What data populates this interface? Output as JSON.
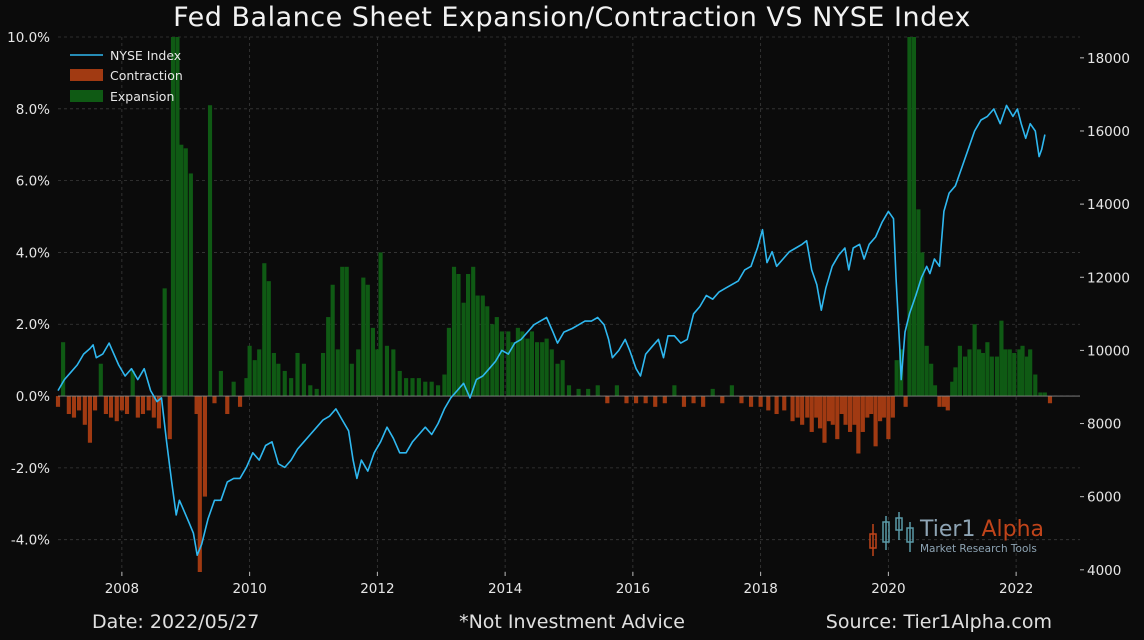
{
  "title": "Fed Balance Sheet Expansion/Contraction VS NYSE Index",
  "footer": {
    "date": "Date: 2022/05/27",
    "note": "*Not Investment Advice",
    "source": "Source: Tier1Alpha.com"
  },
  "watermark": {
    "brand_main": "Tier1",
    "brand_accent": "Alpha",
    "tagline": "Market Research Tools"
  },
  "colors": {
    "background": "#0b0b0b",
    "line": "#2fb8f0",
    "expansion": "#0f5a14",
    "contraction": "#a13a12",
    "grid": "#3a3a3a",
    "accent": "#c0441a"
  },
  "chart_data": {
    "type": "bar+line",
    "title": "Fed Balance Sheet Expansion/Contraction VS NYSE Index",
    "xlim": [
      2007.0,
      2023.0
    ],
    "x_ticks": [
      2008,
      2010,
      2012,
      2014,
      2016,
      2018,
      2020,
      2022
    ],
    "y_left": {
      "lim": [
        -4.9,
        10.0
      ],
      "ticks": [
        -4.0,
        -2.0,
        0.0,
        2.0,
        4.0,
        6.0,
        8.0,
        10.0
      ],
      "tick_labels": [
        "-4.0%",
        "-2.0%",
        "0.0%",
        "2.0%",
        "4.0%",
        "6.0%",
        "8.0%",
        "10.0%"
      ]
    },
    "y_right": {
      "lim": [
        3940,
        18570
      ],
      "ticks": [
        4000,
        6000,
        8000,
        10000,
        12000,
        14000,
        16000,
        18000
      ],
      "tick_labels": [
        "4000",
        "6000",
        "8000",
        "10000",
        "12000",
        "14000",
        "16000",
        "18000"
      ]
    },
    "legend": [
      "NYSE Index",
      "Contraction",
      "Expansion"
    ],
    "legend_position": "top-left",
    "grid": true,
    "bar_width_years": 0.065,
    "bars": [
      [
        2007.0,
        -0.3
      ],
      [
        2007.08,
        1.5
      ],
      [
        2007.17,
        -0.5
      ],
      [
        2007.25,
        -0.6
      ],
      [
        2007.33,
        -0.4
      ],
      [
        2007.42,
        -0.8
      ],
      [
        2007.5,
        -1.3
      ],
      [
        2007.58,
        -0.4
      ],
      [
        2007.67,
        0.9
      ],
      [
        2007.75,
        -0.5
      ],
      [
        2007.83,
        -0.6
      ],
      [
        2007.92,
        -0.7
      ],
      [
        2008.0,
        -0.4
      ],
      [
        2008.08,
        -0.5
      ],
      [
        2008.17,
        0.7
      ],
      [
        2008.25,
        -0.6
      ],
      [
        2008.33,
        -0.5
      ],
      [
        2008.42,
        -0.4
      ],
      [
        2008.5,
        -0.6
      ],
      [
        2008.58,
        -0.9
      ],
      [
        2008.67,
        3.0
      ],
      [
        2008.75,
        -1.2
      ],
      [
        2008.8,
        10.0
      ],
      [
        2008.87,
        10.0
      ],
      [
        2008.93,
        7.0
      ],
      [
        2009.0,
        6.9
      ],
      [
        2009.08,
        6.2
      ],
      [
        2009.17,
        -0.5
      ],
      [
        2009.22,
        -4.9
      ],
      [
        2009.3,
        -2.8
      ],
      [
        2009.38,
        8.1
      ],
      [
        2009.45,
        -0.2
      ],
      [
        2009.55,
        0.7
      ],
      [
        2009.65,
        -0.5
      ],
      [
        2009.75,
        0.4
      ],
      [
        2009.85,
        -0.3
      ],
      [
        2009.95,
        0.5
      ],
      [
        2010.0,
        1.4
      ],
      [
        2010.08,
        1.0
      ],
      [
        2010.15,
        1.3
      ],
      [
        2010.23,
        3.7
      ],
      [
        2010.3,
        3.2
      ],
      [
        2010.38,
        1.2
      ],
      [
        2010.45,
        0.9
      ],
      [
        2010.55,
        0.7
      ],
      [
        2010.65,
        0.5
      ],
      [
        2010.75,
        1.2
      ],
      [
        2010.85,
        0.9
      ],
      [
        2010.95,
        0.3
      ],
      [
        2011.05,
        0.2
      ],
      [
        2011.15,
        1.2
      ],
      [
        2011.23,
        2.2
      ],
      [
        2011.3,
        3.1
      ],
      [
        2011.38,
        1.3
      ],
      [
        2011.45,
        3.6
      ],
      [
        2011.52,
        3.6
      ],
      [
        2011.6,
        0.9
      ],
      [
        2011.7,
        1.3
      ],
      [
        2011.78,
        3.3
      ],
      [
        2011.85,
        3.1
      ],
      [
        2011.93,
        1.9
      ],
      [
        2012.0,
        1.3
      ],
      [
        2012.05,
        4.0
      ],
      [
        2012.15,
        1.4
      ],
      [
        2012.25,
        1.3
      ],
      [
        2012.35,
        0.7
      ],
      [
        2012.45,
        0.5
      ],
      [
        2012.55,
        0.5
      ],
      [
        2012.65,
        0.5
      ],
      [
        2012.75,
        0.4
      ],
      [
        2012.85,
        0.4
      ],
      [
        2012.95,
        0.3
      ],
      [
        2013.05,
        0.6
      ],
      [
        2013.12,
        1.9
      ],
      [
        2013.2,
        3.6
      ],
      [
        2013.27,
        3.4
      ],
      [
        2013.35,
        2.6
      ],
      [
        2013.42,
        3.4
      ],
      [
        2013.5,
        3.6
      ],
      [
        2013.57,
        2.8
      ],
      [
        2013.65,
        2.8
      ],
      [
        2013.72,
        2.5
      ],
      [
        2013.8,
        2.0
      ],
      [
        2013.87,
        2.2
      ],
      [
        2013.95,
        1.8
      ],
      [
        2014.05,
        1.8
      ],
      [
        2014.12,
        1.5
      ],
      [
        2014.2,
        1.9
      ],
      [
        2014.27,
        1.8
      ],
      [
        2014.35,
        1.6
      ],
      [
        2014.42,
        1.8
      ],
      [
        2014.5,
        1.5
      ],
      [
        2014.58,
        1.5
      ],
      [
        2014.65,
        1.6
      ],
      [
        2014.73,
        1.3
      ],
      [
        2014.82,
        0.9
      ],
      [
        2014.9,
        1.0
      ],
      [
        2015.0,
        0.3
      ],
      [
        2015.15,
        0.2
      ],
      [
        2015.3,
        0.2
      ],
      [
        2015.45,
        0.3
      ],
      [
        2015.6,
        -0.2
      ],
      [
        2015.75,
        0.3
      ],
      [
        2015.9,
        -0.2
      ],
      [
        2016.05,
        -0.2
      ],
      [
        2016.2,
        -0.2
      ],
      [
        2016.35,
        -0.3
      ],
      [
        2016.5,
        -0.2
      ],
      [
        2016.65,
        0.3
      ],
      [
        2016.8,
        -0.3
      ],
      [
        2016.95,
        -0.2
      ],
      [
        2017.1,
        -0.3
      ],
      [
        2017.25,
        0.2
      ],
      [
        2017.4,
        -0.2
      ],
      [
        2017.55,
        0.3
      ],
      [
        2017.7,
        -0.2
      ],
      [
        2017.85,
        -0.3
      ],
      [
        2018.0,
        -0.3
      ],
      [
        2018.12,
        -0.4
      ],
      [
        2018.25,
        -0.5
      ],
      [
        2018.37,
        -0.4
      ],
      [
        2018.5,
        -0.7
      ],
      [
        2018.58,
        -0.6
      ],
      [
        2018.65,
        -0.8
      ],
      [
        2018.73,
        -0.6
      ],
      [
        2018.8,
        -1.0
      ],
      [
        2018.87,
        -0.6
      ],
      [
        2018.93,
        -0.9
      ],
      [
        2019.0,
        -1.3
      ],
      [
        2019.07,
        -0.7
      ],
      [
        2019.13,
        -0.8
      ],
      [
        2019.2,
        -1.2
      ],
      [
        2019.27,
        -0.5
      ],
      [
        2019.33,
        -0.8
      ],
      [
        2019.4,
        -1.0
      ],
      [
        2019.47,
        -0.8
      ],
      [
        2019.53,
        -1.6
      ],
      [
        2019.6,
        -1.0
      ],
      [
        2019.67,
        -0.6
      ],
      [
        2019.73,
        -0.5
      ],
      [
        2019.8,
        -1.4
      ],
      [
        2019.87,
        -0.7
      ],
      [
        2019.93,
        -0.6
      ],
      [
        2020.0,
        -1.2
      ],
      [
        2020.07,
        -0.6
      ],
      [
        2020.13,
        1.0
      ],
      [
        2020.2,
        1.3
      ],
      [
        2020.27,
        -0.3
      ],
      [
        2020.33,
        10.0
      ],
      [
        2020.4,
        10.0
      ],
      [
        2020.47,
        5.2
      ],
      [
        2020.53,
        4.0
      ],
      [
        2020.6,
        1.4
      ],
      [
        2020.67,
        0.9
      ],
      [
        2020.73,
        0.3
      ],
      [
        2020.8,
        -0.3
      ],
      [
        2020.87,
        -0.3
      ],
      [
        2020.93,
        -0.4
      ],
      [
        2021.0,
        0.4
      ],
      [
        2021.05,
        0.8
      ],
      [
        2021.12,
        1.4
      ],
      [
        2021.2,
        1.1
      ],
      [
        2021.27,
        1.3
      ],
      [
        2021.35,
        2.0
      ],
      [
        2021.42,
        1.3
      ],
      [
        2021.48,
        1.2
      ],
      [
        2021.55,
        1.5
      ],
      [
        2021.62,
        1.1
      ],
      [
        2021.7,
        1.1
      ],
      [
        2021.77,
        2.1
      ],
      [
        2021.83,
        1.3
      ],
      [
        2021.9,
        1.3
      ],
      [
        2021.97,
        1.2
      ],
      [
        2022.05,
        1.3
      ],
      [
        2022.1,
        1.4
      ],
      [
        2022.17,
        1.1
      ],
      [
        2022.22,
        1.3
      ],
      [
        2022.3,
        0.6
      ],
      [
        2022.38,
        0.1
      ],
      [
        2022.45,
        0.1
      ],
      [
        2022.53,
        -0.2
      ]
    ],
    "nyse": [
      [
        2007.0,
        8900
      ],
      [
        2007.1,
        9200
      ],
      [
        2007.2,
        9400
      ],
      [
        2007.3,
        9600
      ],
      [
        2007.4,
        9900
      ],
      [
        2007.5,
        10050
      ],
      [
        2007.55,
        10150
      ],
      [
        2007.6,
        9800
      ],
      [
        2007.7,
        9900
      ],
      [
        2007.8,
        10200
      ],
      [
        2007.85,
        10000
      ],
      [
        2007.95,
        9600
      ],
      [
        2008.05,
        9300
      ],
      [
        2008.15,
        9500
      ],
      [
        2008.25,
        9200
      ],
      [
        2008.35,
        9500
      ],
      [
        2008.45,
        8900
      ],
      [
        2008.55,
        8600
      ],
      [
        2008.62,
        8700
      ],
      [
        2008.7,
        7500
      ],
      [
        2008.78,
        6400
      ],
      [
        2008.85,
        5500
      ],
      [
        2008.9,
        5900
      ],
      [
        2008.95,
        5700
      ],
      [
        2009.05,
        5300
      ],
      [
        2009.12,
        5000
      ],
      [
        2009.18,
        4400
      ],
      [
        2009.25,
        4700
      ],
      [
        2009.35,
        5400
      ],
      [
        2009.45,
        5900
      ],
      [
        2009.55,
        5900
      ],
      [
        2009.65,
        6400
      ],
      [
        2009.75,
        6500
      ],
      [
        2009.85,
        6500
      ],
      [
        2009.95,
        6800
      ],
      [
        2010.05,
        7200
      ],
      [
        2010.15,
        7000
      ],
      [
        2010.25,
        7400
      ],
      [
        2010.35,
        7500
      ],
      [
        2010.45,
        6900
      ],
      [
        2010.55,
        6800
      ],
      [
        2010.65,
        7000
      ],
      [
        2010.75,
        7300
      ],
      [
        2010.85,
        7500
      ],
      [
        2010.95,
        7700
      ],
      [
        2011.05,
        7900
      ],
      [
        2011.15,
        8100
      ],
      [
        2011.25,
        8200
      ],
      [
        2011.35,
        8400
      ],
      [
        2011.45,
        8100
      ],
      [
        2011.55,
        7800
      ],
      [
        2011.62,
        7000
      ],
      [
        2011.68,
        6500
      ],
      [
        2011.75,
        7000
      ],
      [
        2011.85,
        6700
      ],
      [
        2011.95,
        7200
      ],
      [
        2012.05,
        7500
      ],
      [
        2012.15,
        7900
      ],
      [
        2012.25,
        7600
      ],
      [
        2012.35,
        7200
      ],
      [
        2012.45,
        7200
      ],
      [
        2012.55,
        7500
      ],
      [
        2012.65,
        7700
      ],
      [
        2012.75,
        7900
      ],
      [
        2012.85,
        7700
      ],
      [
        2012.95,
        8000
      ],
      [
        2013.05,
        8400
      ],
      [
        2013.15,
        8700
      ],
      [
        2013.25,
        8900
      ],
      [
        2013.35,
        9100
      ],
      [
        2013.45,
        8700
      ],
      [
        2013.55,
        9200
      ],
      [
        2013.65,
        9300
      ],
      [
        2013.75,
        9500
      ],
      [
        2013.85,
        9700
      ],
      [
        2013.95,
        10000
      ],
      [
        2014.05,
        9900
      ],
      [
        2014.15,
        10200
      ],
      [
        2014.25,
        10300
      ],
      [
        2014.35,
        10500
      ],
      [
        2014.45,
        10700
      ],
      [
        2014.55,
        10800
      ],
      [
        2014.65,
        10900
      ],
      [
        2014.75,
        10500
      ],
      [
        2014.82,
        10200
      ],
      [
        2014.92,
        10500
      ],
      [
        2015.05,
        10600
      ],
      [
        2015.15,
        10700
      ],
      [
        2015.25,
        10800
      ],
      [
        2015.35,
        10800
      ],
      [
        2015.45,
        10900
      ],
      [
        2015.55,
        10700
      ],
      [
        2015.62,
        10300
      ],
      [
        2015.68,
        9800
      ],
      [
        2015.78,
        10000
      ],
      [
        2015.88,
        10300
      ],
      [
        2015.95,
        10000
      ],
      [
        2016.05,
        9500
      ],
      [
        2016.12,
        9300
      ],
      [
        2016.2,
        9900
      ],
      [
        2016.3,
        10100
      ],
      [
        2016.4,
        10300
      ],
      [
        2016.48,
        9800
      ],
      [
        2016.55,
        10400
      ],
      [
        2016.65,
        10400
      ],
      [
        2016.75,
        10200
      ],
      [
        2016.85,
        10300
      ],
      [
        2016.95,
        11000
      ],
      [
        2017.05,
        11200
      ],
      [
        2017.15,
        11500
      ],
      [
        2017.25,
        11400
      ],
      [
        2017.35,
        11600
      ],
      [
        2017.45,
        11700
      ],
      [
        2017.55,
        11800
      ],
      [
        2017.65,
        11900
      ],
      [
        2017.75,
        12200
      ],
      [
        2017.85,
        12300
      ],
      [
        2017.95,
        12800
      ],
      [
        2018.03,
        13300
      ],
      [
        2018.1,
        12400
      ],
      [
        2018.18,
        12700
      ],
      [
        2018.25,
        12300
      ],
      [
        2018.35,
        12500
      ],
      [
        2018.45,
        12700
      ],
      [
        2018.55,
        12800
      ],
      [
        2018.65,
        12900
      ],
      [
        2018.72,
        13000
      ],
      [
        2018.8,
        12200
      ],
      [
        2018.88,
        11800
      ],
      [
        2018.95,
        11100
      ],
      [
        2019.02,
        11700
      ],
      [
        2019.12,
        12300
      ],
      [
        2019.22,
        12600
      ],
      [
        2019.32,
        12800
      ],
      [
        2019.38,
        12200
      ],
      [
        2019.45,
        12800
      ],
      [
        2019.55,
        12900
      ],
      [
        2019.62,
        12500
      ],
      [
        2019.7,
        12900
      ],
      [
        2019.8,
        13100
      ],
      [
        2019.9,
        13500
      ],
      [
        2020.0,
        13800
      ],
      [
        2020.08,
        13600
      ],
      [
        2020.12,
        12000
      ],
      [
        2020.18,
        10000
      ],
      [
        2020.2,
        9200
      ],
      [
        2020.26,
        10500
      ],
      [
        2020.33,
        11000
      ],
      [
        2020.43,
        11500
      ],
      [
        2020.52,
        12000
      ],
      [
        2020.6,
        12300
      ],
      [
        2020.65,
        12100
      ],
      [
        2020.72,
        12500
      ],
      [
        2020.8,
        12300
      ],
      [
        2020.87,
        13800
      ],
      [
        2020.95,
        14300
      ],
      [
        2021.05,
        14500
      ],
      [
        2021.15,
        15000
      ],
      [
        2021.25,
        15500
      ],
      [
        2021.35,
        16000
      ],
      [
        2021.45,
        16300
      ],
      [
        2021.55,
        16400
      ],
      [
        2021.65,
        16600
      ],
      [
        2021.75,
        16200
      ],
      [
        2021.85,
        16700
      ],
      [
        2021.95,
        16400
      ],
      [
        2022.02,
        16600
      ],
      [
        2022.08,
        16200
      ],
      [
        2022.15,
        15800
      ],
      [
        2022.22,
        16200
      ],
      [
        2022.3,
        16000
      ],
      [
        2022.36,
        15300
      ],
      [
        2022.4,
        15500
      ],
      [
        2022.45,
        15900
      ]
    ]
  }
}
